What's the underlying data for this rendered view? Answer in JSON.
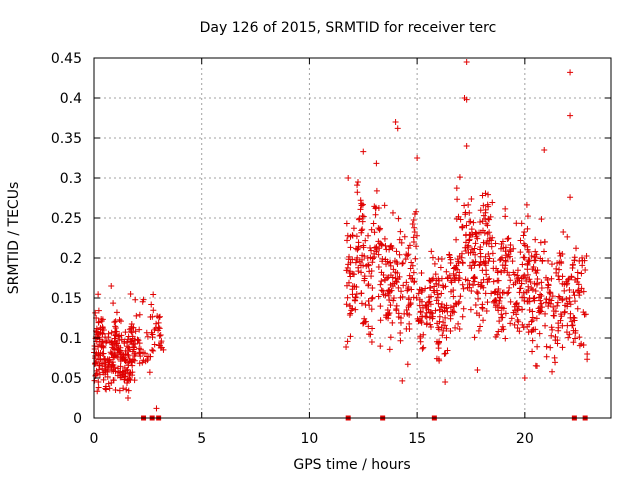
{
  "chart_data": {
    "type": "scatter",
    "title": "Day 126 of 2015, SRMTID for receiver terc",
    "xlabel": "GPS time / hours",
    "ylabel": "SRMTID / TECUs",
    "xlim": [
      0,
      24
    ],
    "ylim": [
      0,
      0.45
    ],
    "x_ticks": [
      "0",
      "5",
      "10",
      "15",
      "20"
    ],
    "y_ticks": [
      "0",
      "0.05",
      "0.1",
      "0.15",
      "0.2",
      "0.25",
      "0.3",
      "0.35",
      "0.4",
      "0.45"
    ],
    "grid": true,
    "marker": "+",
    "marker_color": "#e00000",
    "series": [
      {
        "name": "SRMTID",
        "clusters": [
          {
            "x_start": 0.0,
            "x_end": 1.9,
            "center": 0.08,
            "spread": 0.03,
            "count": 260
          },
          {
            "x_start": 1.9,
            "x_end": 3.3,
            "center": 0.1,
            "spread": 0.03,
            "count": 60
          },
          {
            "x_start": 11.7,
            "x_end": 13.5,
            "center": 0.19,
            "spread": 0.055,
            "count": 160
          },
          {
            "x_start": 13.5,
            "x_end": 15.0,
            "center": 0.17,
            "spread": 0.05,
            "count": 130
          },
          {
            "x_start": 15.0,
            "x_end": 16.8,
            "center": 0.14,
            "spread": 0.04,
            "count": 150
          },
          {
            "x_start": 16.8,
            "x_end": 18.5,
            "center": 0.2,
            "spread": 0.055,
            "count": 170
          },
          {
            "x_start": 18.5,
            "x_end": 20.5,
            "center": 0.17,
            "spread": 0.045,
            "count": 190
          },
          {
            "x_start": 20.5,
            "x_end": 22.9,
            "center": 0.15,
            "spread": 0.05,
            "count": 180
          }
        ],
        "peaks": [
          {
            "x": 17.3,
            "y": 0.445
          },
          {
            "x": 17.2,
            "y": 0.4
          },
          {
            "x": 17.3,
            "y": 0.398
          },
          {
            "x": 22.1,
            "y": 0.432
          },
          {
            "x": 22.1,
            "y": 0.378
          },
          {
            "x": 14.0,
            "y": 0.37
          },
          {
            "x": 14.1,
            "y": 0.362
          },
          {
            "x": 12.5,
            "y": 0.333
          },
          {
            "x": 20.9,
            "y": 0.335
          },
          {
            "x": 17.3,
            "y": 0.34
          },
          {
            "x": 15.0,
            "y": 0.325
          },
          {
            "x": 11.8,
            "y": 0.3
          },
          {
            "x": 22.1,
            "y": 0.276
          },
          {
            "x": 1.7,
            "y": 0.155
          },
          {
            "x": 2.3,
            "y": 0.148
          },
          {
            "x": 0.1,
            "y": 0.125
          },
          {
            "x": 0.8,
            "y": 0.165
          },
          {
            "x": 0.2,
            "y": 0.045
          },
          {
            "x": 1.0,
            "y": 0.035
          },
          {
            "x": 2.9,
            "y": 0.012
          },
          {
            "x": 20.0,
            "y": 0.05
          },
          {
            "x": 16.3,
            "y": 0.045
          },
          {
            "x": 17.8,
            "y": 0.06
          }
        ]
      }
    ],
    "gap_markers_x": [
      2.3,
      2.7,
      3.0,
      11.8,
      13.4,
      15.8,
      22.3,
      22.8
    ]
  }
}
